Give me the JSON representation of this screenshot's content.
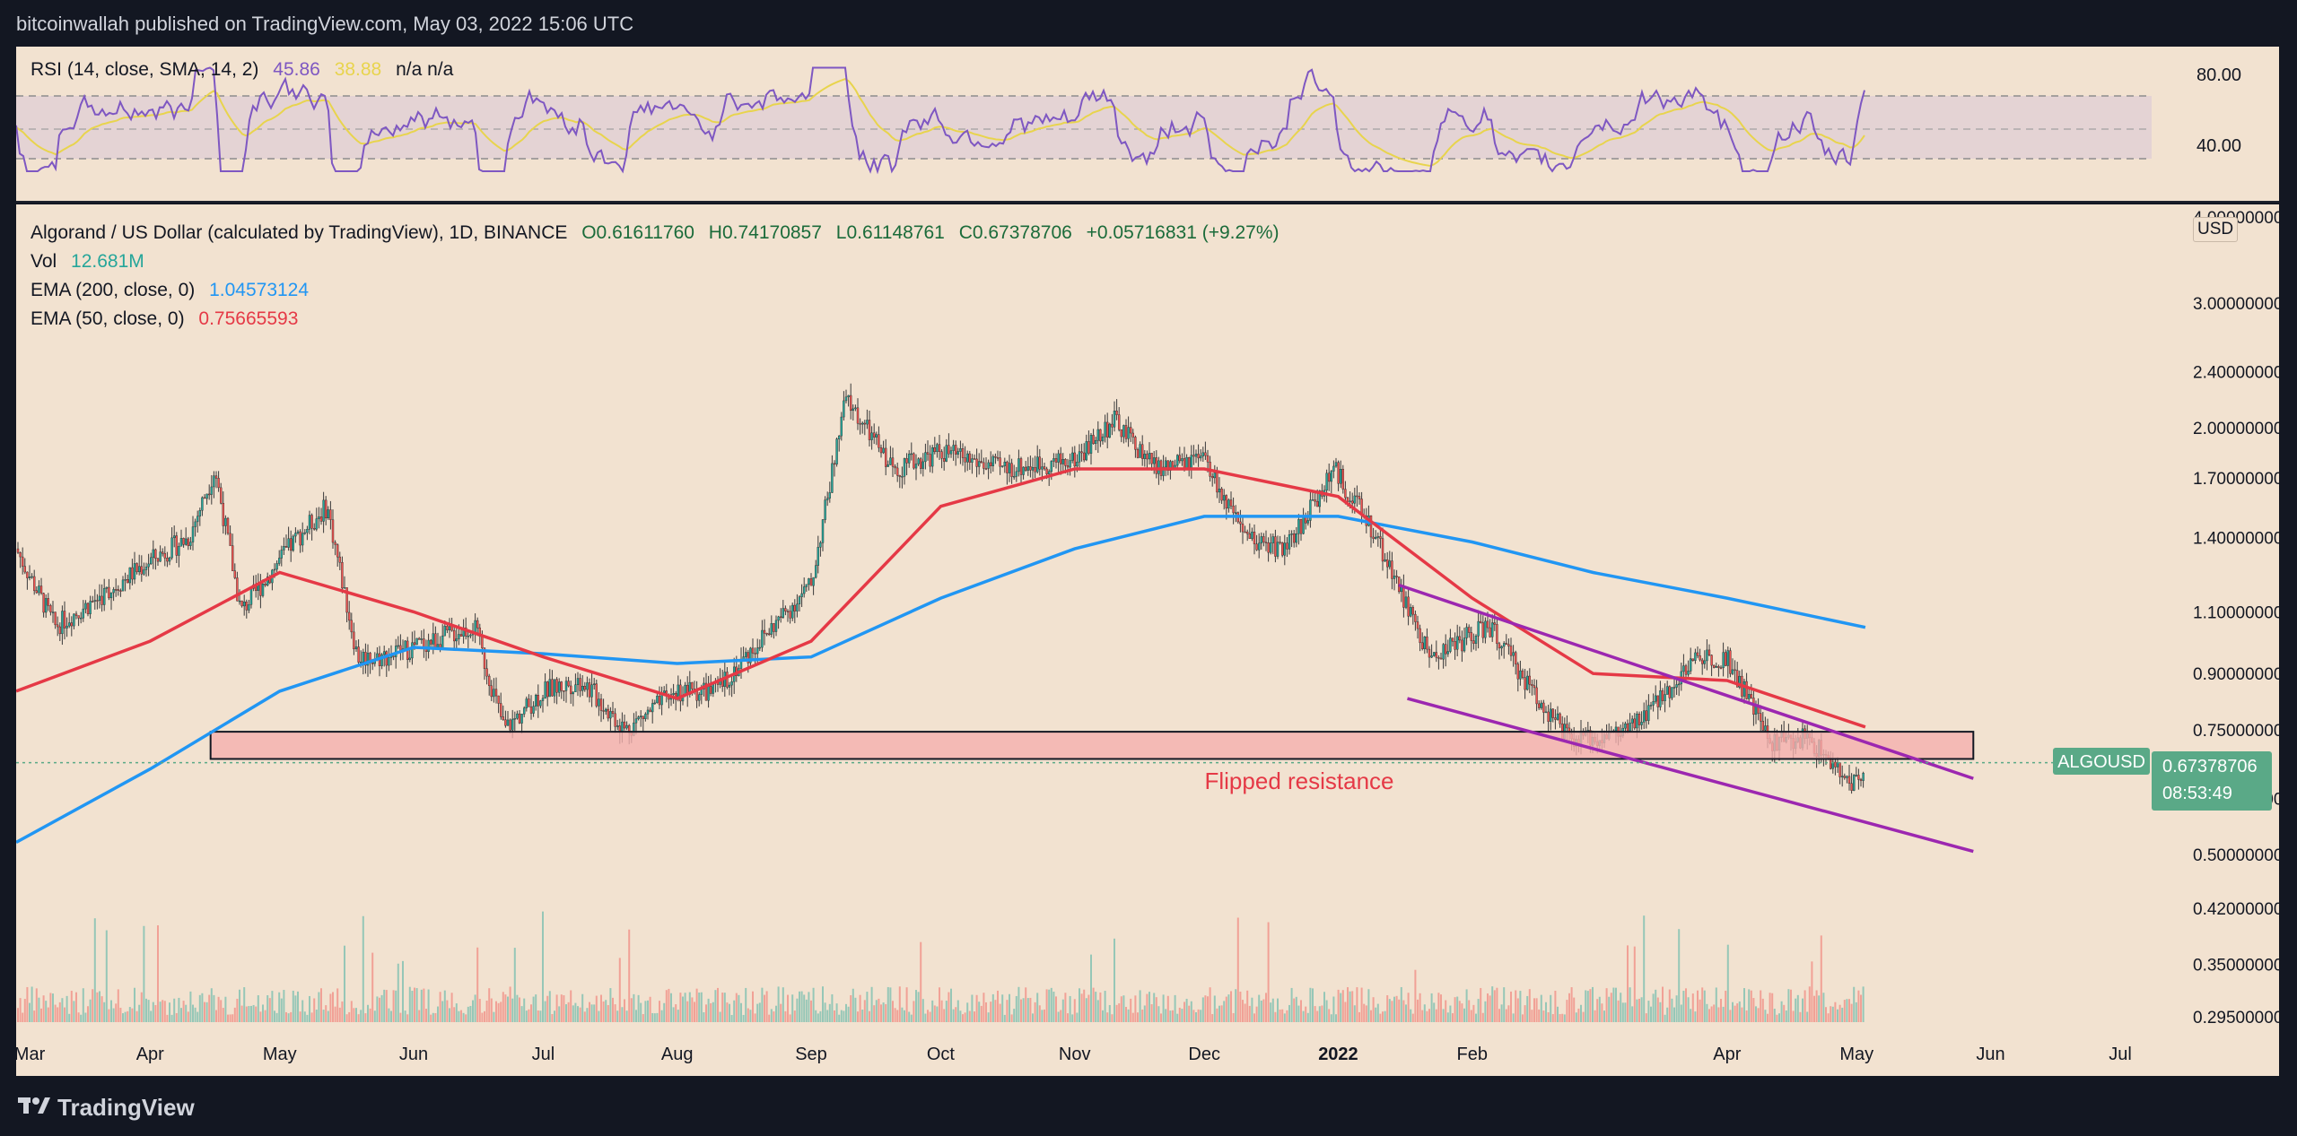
{
  "header": {
    "publisher": "bitcoinwallah published on TradingView.com, May 03, 2022 15:06 UTC"
  },
  "footer": {
    "brand": "TradingView"
  },
  "rsi": {
    "label": "RSI (14, close, SMA, 14, 2)",
    "value": "45.86",
    "sma_value": "38.88",
    "extra": "n/a  n/a",
    "ticks": [
      "80.00",
      "40.00"
    ],
    "colors": {
      "rsi": "#7e57c2",
      "sma": "#e8d44d"
    }
  },
  "main": {
    "title": "Algorand / US Dollar (calculated by TradingView), 1D, BINANCE",
    "ohlc": {
      "o": "O0.61611760",
      "h": "H0.74170857",
      "l": "L0.61148761",
      "c": "C0.67378706",
      "chg": "+0.05716831 (+9.27%)"
    },
    "vol_label": "Vol",
    "vol_value": "12.681M",
    "ema200_label": "EMA (200, close, 0)",
    "ema200_value": "1.04573124",
    "ema50_label": "EMA (50, close, 0)",
    "ema50_value": "0.75665593",
    "currency": "USD",
    "annotation": "Flipped resistance",
    "price_label": {
      "symbol": "ALGOUSD",
      "price": "0.67378706",
      "countdown": "08:53:49"
    },
    "price_ticks": [
      "4.00000000",
      "3.00000000",
      "2.40000000",
      "2.00000000",
      "1.70000000",
      "1.40000000",
      "1.10000000",
      "0.90000000",
      "0.75000000",
      "0.60000000",
      "0.50000000",
      "0.42000000",
      "0.35000000",
      "0.29500000"
    ],
    "colors": {
      "up": "#26a69a",
      "down": "#ef5350",
      "ema200": "#2196f3",
      "ema50": "#e53946",
      "channel": "#9c27b0",
      "zone": "#f4b0ae",
      "label_bg": "#5aa987"
    }
  },
  "time_axis": [
    "Mar",
    "Apr",
    "May",
    "Jun",
    "Jul",
    "Aug",
    "Sep",
    "Oct",
    "Nov",
    "Dec",
    "2022",
    "Feb",
    "Apr",
    "May",
    "Jun",
    "Jul"
  ],
  "chart_data": {
    "type": "candlestick",
    "title": "Algorand / US Dollar (calculated by TradingView), 1D, BINANCE",
    "y_scale": "log",
    "ylim": [
      0.29,
      4.0
    ],
    "x_range": [
      "2021-03",
      "2022-07"
    ],
    "close_points": [
      {
        "x": "2021-03-01",
        "y": 1.35
      },
      {
        "x": "2021-03-10",
        "y": 1.05
      },
      {
        "x": "2021-03-20",
        "y": 1.15
      },
      {
        "x": "2021-04-01",
        "y": 1.3
      },
      {
        "x": "2021-04-10",
        "y": 1.4
      },
      {
        "x": "2021-04-16",
        "y": 1.75
      },
      {
        "x": "2021-04-22",
        "y": 1.1
      },
      {
        "x": "2021-05-05",
        "y": 1.4
      },
      {
        "x": "2021-05-12",
        "y": 1.55
      },
      {
        "x": "2021-05-19",
        "y": 0.95
      },
      {
        "x": "2021-05-25",
        "y": 0.95
      },
      {
        "x": "2021-06-05",
        "y": 1.0
      },
      {
        "x": "2021-06-15",
        "y": 1.05
      },
      {
        "x": "2021-06-22",
        "y": 0.75
      },
      {
        "x": "2021-07-01",
        "y": 0.85
      },
      {
        "x": "2021-07-10",
        "y": 0.88
      },
      {
        "x": "2021-07-20",
        "y": 0.75
      },
      {
        "x": "2021-08-01",
        "y": 0.85
      },
      {
        "x": "2021-08-10",
        "y": 0.85
      },
      {
        "x": "2021-08-20",
        "y": 1.0
      },
      {
        "x": "2021-09-01",
        "y": 1.2
      },
      {
        "x": "2021-09-09",
        "y": 2.2
      },
      {
        "x": "2021-09-20",
        "y": 1.75
      },
      {
        "x": "2021-10-01",
        "y": 1.85
      },
      {
        "x": "2021-10-15",
        "y": 1.75
      },
      {
        "x": "2021-11-01",
        "y": 1.8
      },
      {
        "x": "2021-11-10",
        "y": 2.05
      },
      {
        "x": "2021-11-20",
        "y": 1.75
      },
      {
        "x": "2021-12-01",
        "y": 1.8
      },
      {
        "x": "2021-12-10",
        "y": 1.4
      },
      {
        "x": "2021-12-20",
        "y": 1.35
      },
      {
        "x": "2021-12-31",
        "y": 1.75
      },
      {
        "x": "2022-01-10",
        "y": 1.4
      },
      {
        "x": "2022-01-22",
        "y": 0.95
      },
      {
        "x": "2022-02-05",
        "y": 1.05
      },
      {
        "x": "2022-02-15",
        "y": 0.85
      },
      {
        "x": "2022-02-24",
        "y": 0.72
      },
      {
        "x": "2022-03-10",
        "y": 0.75
      },
      {
        "x": "2022-03-25",
        "y": 0.95
      },
      {
        "x": "2022-04-01",
        "y": 0.95
      },
      {
        "x": "2022-04-11",
        "y": 0.72
      },
      {
        "x": "2022-04-20",
        "y": 0.73
      },
      {
        "x": "2022-04-30",
        "y": 0.62
      },
      {
        "x": "2022-05-03",
        "y": 0.674
      }
    ],
    "ema200_points": [
      {
        "x": "2021-03-01",
        "y": 0.52
      },
      {
        "x": "2021-04-01",
        "y": 0.66
      },
      {
        "x": "2021-05-01",
        "y": 0.85
      },
      {
        "x": "2021-06-01",
        "y": 0.98
      },
      {
        "x": "2021-07-01",
        "y": 0.96
      },
      {
        "x": "2021-08-01",
        "y": 0.93
      },
      {
        "x": "2021-09-01",
        "y": 0.95
      },
      {
        "x": "2021-10-01",
        "y": 1.15
      },
      {
        "x": "2021-11-01",
        "y": 1.35
      },
      {
        "x": "2021-12-01",
        "y": 1.5
      },
      {
        "x": "2022-01-01",
        "y": 1.5
      },
      {
        "x": "2022-02-01",
        "y": 1.38
      },
      {
        "x": "2022-03-01",
        "y": 1.25
      },
      {
        "x": "2022-04-01",
        "y": 1.15
      },
      {
        "x": "2022-05-03",
        "y": 1.0457
      }
    ],
    "ema50_points": [
      {
        "x": "2021-03-01",
        "y": 0.85
      },
      {
        "x": "2021-04-01",
        "y": 1.0
      },
      {
        "x": "2021-05-01",
        "y": 1.25
      },
      {
        "x": "2021-06-01",
        "y": 1.1
      },
      {
        "x": "2021-07-01",
        "y": 0.95
      },
      {
        "x": "2021-08-01",
        "y": 0.83
      },
      {
        "x": "2021-09-01",
        "y": 1.0
      },
      {
        "x": "2021-10-01",
        "y": 1.55
      },
      {
        "x": "2021-11-01",
        "y": 1.75
      },
      {
        "x": "2021-12-01",
        "y": 1.75
      },
      {
        "x": "2022-01-01",
        "y": 1.6
      },
      {
        "x": "2022-02-01",
        "y": 1.15
      },
      {
        "x": "2022-03-01",
        "y": 0.9
      },
      {
        "x": "2022-04-01",
        "y": 0.88
      },
      {
        "x": "2022-05-03",
        "y": 0.7567
      }
    ],
    "resistance_zone": {
      "from": "2021-04-15",
      "to": "2022-05-28",
      "low": 0.682,
      "high": 0.745
    },
    "channel_upper": [
      {
        "x": "2022-01-15",
        "y": 1.2
      },
      {
        "x": "2022-05-28",
        "y": 0.64
      }
    ],
    "channel_lower": [
      {
        "x": "2022-01-17",
        "y": 0.83
      },
      {
        "x": "2022-05-28",
        "y": 0.505
      }
    ],
    "last_price": 0.67378706
  }
}
